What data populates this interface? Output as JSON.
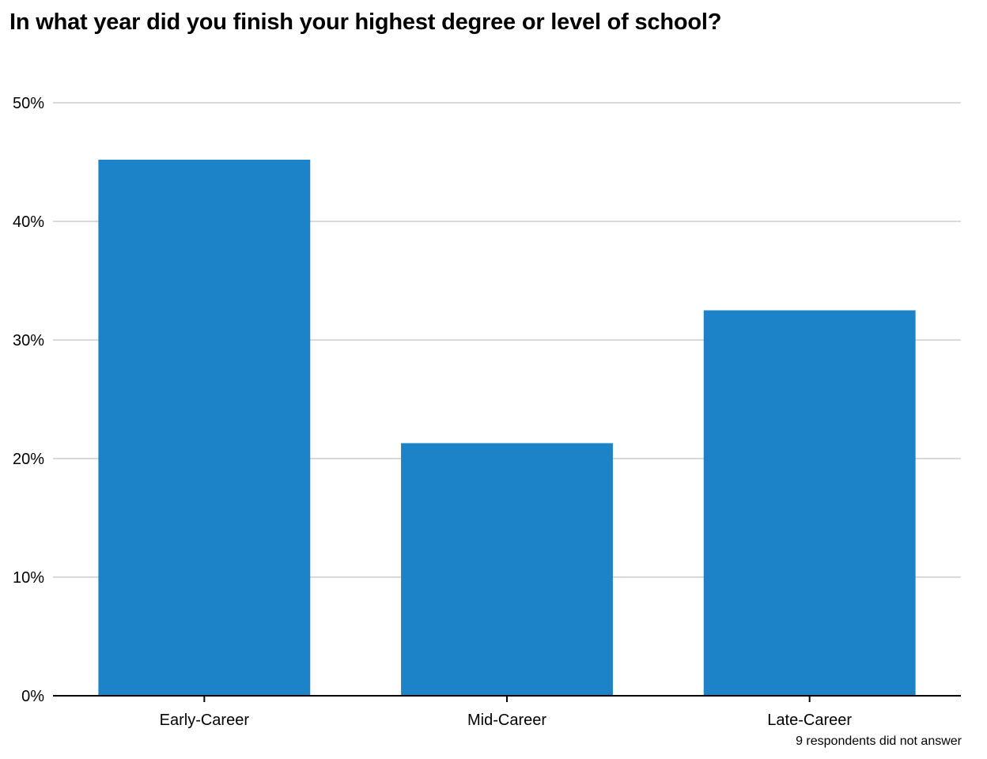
{
  "chart_data": {
    "type": "bar",
    "title": "In what year did you finish your highest degree or level of school?",
    "categories": [
      "Early-Career",
      "Mid-Career",
      "Late-Career"
    ],
    "values": [
      45.2,
      21.3,
      32.5
    ],
    "ylim": [
      0,
      50
    ],
    "yticks": [
      0,
      10,
      20,
      30,
      40,
      50
    ],
    "ytick_labels": [
      "0%",
      "10%",
      "20%",
      "30%",
      "40%",
      "50%"
    ],
    "xlabel": "",
    "ylabel": "",
    "grid": true,
    "note": "9 respondents did not answer",
    "bar_color": "#1c83c9"
  }
}
